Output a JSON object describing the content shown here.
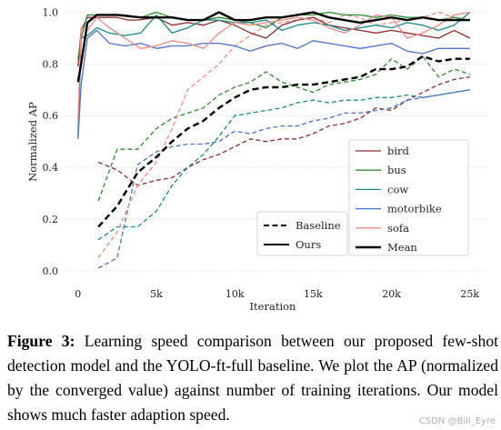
{
  "chart_data": {
    "type": "line",
    "xlabel": "Iteration",
    "ylabel": "Normalized AP",
    "xlim": [
      -800,
      26000
    ],
    "ylim": [
      -0.05,
      1.03
    ],
    "x_ticks": [
      0,
      5000,
      10000,
      15000,
      20000,
      25000
    ],
    "x_tick_labels": [
      "0",
      "5k",
      "10k",
      "15k",
      "20k",
      "25k"
    ],
    "y_ticks": [
      0.0,
      0.2,
      0.4,
      0.6,
      0.8,
      1.0
    ],
    "y_tick_labels": [
      "0.0",
      "0.2",
      "0.4",
      "0.6",
      "0.8",
      "1.0"
    ],
    "grid": "horizontal dotted",
    "legend_placement": "lower-right",
    "legend_style": [
      {
        "label": "Baseline",
        "dash": "dashed"
      },
      {
        "label": "Ours",
        "dash": "solid"
      }
    ],
    "series": [
      {
        "name": "bird",
        "color": "#8c2d2d",
        "method": "Ours",
        "width": 1.3,
        "x": [
          0,
          200,
          600,
          1200,
          2500,
          3200,
          3800,
          5000,
          6000,
          7000,
          8000,
          9000,
          10000,
          11000,
          12000,
          13000,
          14000,
          15000,
          16000,
          17000,
          18000,
          19000,
          20000,
          21000,
          22000,
          23000,
          24000,
          25000
        ],
        "y": [
          0.79,
          0.93,
          0.98,
          0.98,
          0.98,
          0.97,
          0.97,
          0.98,
          0.95,
          0.96,
          0.95,
          0.97,
          0.95,
          0.92,
          0.9,
          0.95,
          0.97,
          0.98,
          0.95,
          0.94,
          0.93,
          0.92,
          0.93,
          0.92,
          0.91,
          0.9,
          0.93,
          0.9
        ]
      },
      {
        "name": "bus",
        "color": "#2e8b2e",
        "method": "Ours",
        "width": 1.3,
        "x": [
          0,
          200,
          600,
          1200,
          2000,
          3000,
          4000,
          5000,
          6000,
          7000,
          8000,
          9000,
          10000,
          11000,
          12000,
          13000,
          14000,
          15000,
          16000,
          17000,
          18000,
          19000,
          20000,
          21000,
          22000,
          23000,
          24000,
          25000
        ],
        "y": [
          0.82,
          0.9,
          0.99,
          0.99,
          0.99,
          0.99,
          0.98,
          1.0,
          0.98,
          0.97,
          0.97,
          0.98,
          0.97,
          0.96,
          0.94,
          0.98,
          0.99,
          0.99,
          1.0,
          0.99,
          0.99,
          0.98,
          0.99,
          0.98,
          0.98,
          0.97,
          0.98,
          0.97
        ]
      },
      {
        "name": "cow",
        "color": "#1a8a8a",
        "method": "Ours",
        "width": 1.3,
        "x": [
          0,
          200,
          600,
          1200,
          2000,
          3000,
          4000,
          5000,
          6000,
          7000,
          8000,
          9000,
          10000,
          11000,
          12000,
          13000,
          14000,
          15000,
          16000,
          17000,
          18000,
          19000,
          20000,
          21000,
          22000,
          23000,
          24000,
          25000
        ],
        "y": [
          0.52,
          0.9,
          0.91,
          0.94,
          0.92,
          0.91,
          0.92,
          0.99,
          0.92,
          0.94,
          0.97,
          0.97,
          0.96,
          0.96,
          0.97,
          0.93,
          0.95,
          0.96,
          0.95,
          0.93,
          0.94,
          0.95,
          0.94,
          0.96,
          0.95,
          0.93,
          0.95,
          1.0
        ]
      },
      {
        "name": "motorbike",
        "color": "#4a72c4",
        "method": "Ours",
        "width": 1.3,
        "x": [
          0,
          200,
          600,
          1200,
          2000,
          3000,
          4000,
          5000,
          6000,
          7000,
          8000,
          9000,
          10000,
          11000,
          12000,
          13000,
          14000,
          15000,
          16000,
          17000,
          18000,
          19000,
          20000,
          21000,
          22000,
          23000,
          24000,
          25000
        ],
        "y": [
          0.51,
          0.72,
          0.9,
          0.93,
          0.88,
          0.87,
          0.88,
          0.86,
          0.87,
          0.87,
          0.88,
          0.88,
          0.87,
          0.85,
          0.87,
          0.88,
          0.86,
          0.89,
          0.88,
          0.87,
          0.86,
          0.87,
          0.88,
          0.85,
          0.84,
          0.86,
          0.86,
          0.86
        ]
      },
      {
        "name": "sofa",
        "color": "#f08a80",
        "method": "Ours",
        "width": 1.3,
        "x": [
          0,
          200,
          600,
          1200,
          2000,
          3000,
          4000,
          5000,
          6000,
          7000,
          8000,
          9000,
          10000,
          11000,
          12000,
          13000,
          14000,
          15000,
          16000,
          17000,
          18000,
          19000,
          20000,
          21000,
          22000,
          23000,
          24000,
          25000
        ],
        "y": [
          0.58,
          0.94,
          0.93,
          0.98,
          0.94,
          0.9,
          0.86,
          0.87,
          0.89,
          0.88,
          0.86,
          0.92,
          0.96,
          0.95,
          0.96,
          0.97,
          0.98,
          0.97,
          0.94,
          0.92,
          0.95,
          0.99,
          0.98,
          0.9,
          0.92,
          0.95,
          0.99,
          1.0
        ]
      },
      {
        "name": "Mean",
        "color": "#000000",
        "method": "Ours",
        "width": 2.4,
        "x": [
          0,
          200,
          600,
          1200,
          2500,
          4000,
          5000,
          6000,
          7000,
          8000,
          9000,
          10000,
          11000,
          12000,
          13000,
          14000,
          15000,
          16000,
          17000,
          18000,
          19000,
          20000,
          21000,
          22000,
          23000,
          24000,
          25000
        ],
        "y": [
          0.73,
          0.8,
          0.96,
          0.99,
          0.99,
          0.98,
          0.98,
          0.98,
          0.97,
          0.97,
          1.0,
          0.97,
          0.97,
          0.98,
          0.98,
          0.99,
          1.0,
          0.98,
          0.97,
          0.96,
          0.97,
          0.98,
          0.97,
          0.98,
          0.97,
          0.97,
          0.97
        ]
      },
      {
        "name": "bird",
        "color": "#8c2d2d",
        "method": "Baseline",
        "width": 1.3,
        "x": [
          1300,
          2500,
          3800,
          5000,
          6000,
          7000,
          8000,
          9000,
          10000,
          11000,
          12000,
          13000,
          14000,
          15000,
          16000,
          17000,
          18000,
          19000,
          20000,
          21000,
          22000,
          23000,
          24000,
          25000
        ],
        "y": [
          0.42,
          0.39,
          0.33,
          0.35,
          0.36,
          0.4,
          0.43,
          0.45,
          0.48,
          0.51,
          0.5,
          0.51,
          0.51,
          0.53,
          0.56,
          0.57,
          0.59,
          0.63,
          0.62,
          0.66,
          0.69,
          0.72,
          0.74,
          0.75
        ]
      },
      {
        "name": "bus",
        "color": "#2e8b2e",
        "method": "Baseline",
        "width": 1.3,
        "x": [
          1300,
          2500,
          3800,
          5000,
          6000,
          7000,
          8000,
          9000,
          10000,
          11000,
          12000,
          13000,
          14000,
          15000,
          16000,
          17000,
          18000,
          19000,
          20000,
          21000,
          22000,
          23000,
          24000,
          25000
        ],
        "y": [
          0.27,
          0.47,
          0.47,
          0.55,
          0.59,
          0.61,
          0.63,
          0.68,
          0.71,
          0.73,
          0.77,
          0.73,
          0.71,
          0.69,
          0.72,
          0.73,
          0.74,
          0.76,
          0.82,
          0.78,
          0.83,
          0.75,
          0.78,
          0.76
        ]
      },
      {
        "name": "cow",
        "color": "#1a8a8a",
        "method": "Baseline",
        "width": 1.3,
        "x": [
          1300,
          2500,
          3800,
          5000,
          6000,
          7000,
          8000,
          9000,
          10000,
          11000,
          12000,
          13000,
          14000,
          15000,
          16000,
          17000,
          18000,
          19000,
          20000,
          21000,
          22000,
          23000,
          24000,
          25000
        ],
        "y": [
          0.12,
          0.17,
          0.17,
          0.23,
          0.33,
          0.4,
          0.45,
          0.52,
          0.6,
          0.61,
          0.62,
          0.63,
          0.65,
          0.66,
          0.65,
          0.66,
          0.66,
          0.67,
          0.67,
          0.68,
          0.67,
          0.68,
          0.69,
          0.7
        ]
      },
      {
        "name": "motorbike",
        "color": "#4a72c4",
        "method": "Baseline",
        "width": 1.3,
        "x": [
          1300,
          2500,
          3800,
          5000,
          6000,
          7000,
          8000,
          9000,
          10000,
          11000,
          12000,
          13000,
          14000,
          15000,
          16000,
          17000,
          18000,
          19000,
          20000,
          21000,
          22000,
          23000,
          24000,
          25000
        ],
        "y": [
          0.01,
          0.05,
          0.41,
          0.46,
          0.48,
          0.49,
          0.49,
          0.5,
          0.54,
          0.53,
          0.55,
          0.56,
          0.56,
          0.58,
          0.59,
          0.61,
          0.61,
          0.62,
          0.63,
          0.66,
          0.67,
          0.68,
          0.69,
          0.7
        ]
      },
      {
        "name": "sofa",
        "color": "#f08a80",
        "method": "Baseline",
        "width": 1.3,
        "x": [
          1300,
          2500,
          3800,
          5000,
          6000,
          7000,
          8000,
          9000,
          10000,
          11000,
          12000,
          13000,
          14000,
          15000,
          16000,
          17000,
          18000,
          19000,
          20000,
          21000,
          22000,
          23000,
          24000,
          25000
        ],
        "y": [
          0.05,
          0.15,
          0.33,
          0.42,
          0.55,
          0.7,
          0.75,
          0.8,
          0.87,
          0.91,
          0.95,
          0.96,
          0.97,
          0.98,
          0.96,
          0.99,
          0.98,
          0.95,
          0.96,
          0.97,
          0.98,
          1.0,
          0.98,
          0.97
        ]
      },
      {
        "name": "Mean",
        "color": "#000000",
        "method": "Baseline",
        "width": 2.4,
        "x": [
          1300,
          2500,
          3800,
          5000,
          6000,
          7000,
          8000,
          9000,
          10000,
          11000,
          12000,
          13000,
          14000,
          15000,
          16000,
          17000,
          18000,
          19000,
          20000,
          21000,
          22000,
          23000,
          24000,
          25000
        ],
        "y": [
          0.17,
          0.25,
          0.38,
          0.44,
          0.5,
          0.55,
          0.58,
          0.63,
          0.67,
          0.7,
          0.71,
          0.71,
          0.72,
          0.72,
          0.73,
          0.74,
          0.75,
          0.78,
          0.78,
          0.79,
          0.83,
          0.81,
          0.82,
          0.82
        ]
      }
    ],
    "legend_entries": [
      {
        "label": "bird",
        "color": "#8c2d2d",
        "dash": "solid",
        "width": 1.3
      },
      {
        "label": "bus",
        "color": "#2e8b2e",
        "dash": "solid",
        "width": 1.3
      },
      {
        "label": "cow",
        "color": "#1a8a8a",
        "dash": "solid",
        "width": 1.3
      },
      {
        "label": "motorbike",
        "color": "#4a72c4",
        "dash": "solid",
        "width": 1.3
      },
      {
        "label": "sofa",
        "color": "#f08a80",
        "dash": "solid",
        "width": 1.3
      },
      {
        "label": "Mean",
        "color": "#000000",
        "dash": "solid",
        "width": 2.4
      }
    ],
    "legend_style_entries": [
      {
        "label": "Baseline",
        "color": "#000000",
        "dash": "dashed",
        "width": 2.0
      },
      {
        "label": "Ours",
        "color": "#000000",
        "dash": "solid",
        "width": 2.0
      }
    ]
  },
  "caption": {
    "figure_label": "Figure 3:",
    "text": "Learning speed comparison between our proposed few-shot detection model and the YOLO-ft-full baseline. We plot the AP (normalized by the converged value) against number of training iterations. Our model shows much faster adaption speed."
  },
  "watermark": "CSDN @Bill_Eyre"
}
